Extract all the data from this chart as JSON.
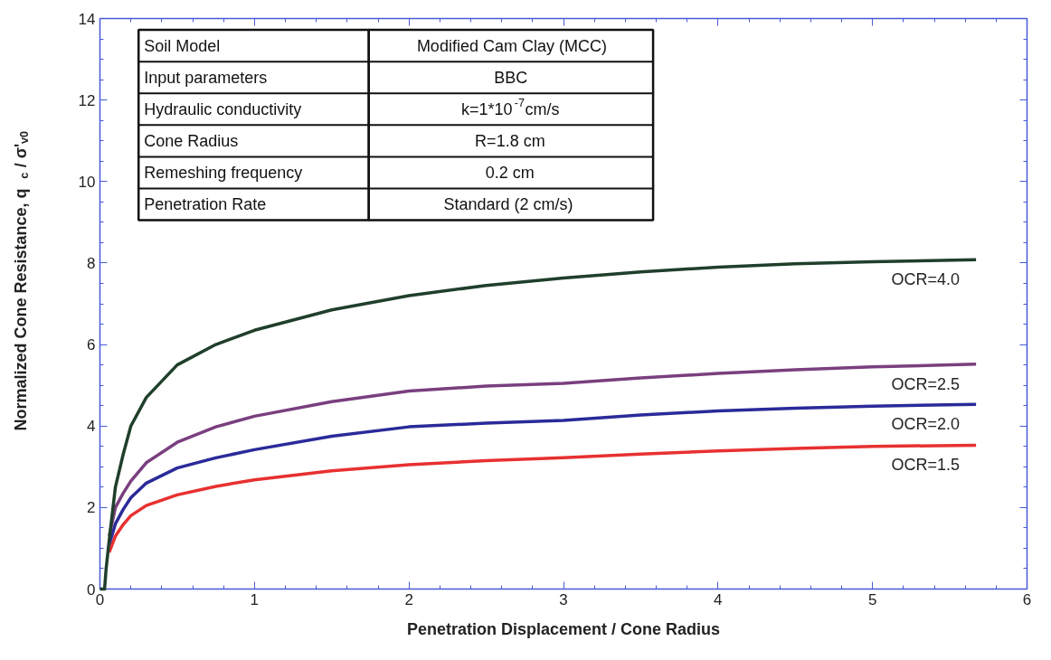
{
  "chart_data": {
    "type": "line",
    "xlabel": "Penetration Displacement / Cone Radius",
    "ylabel": "Normalized Cone Resistance, q$_{c}$ / σ'$_{v0}$",
    "x": [
      0,
      0.03,
      0.04,
      0.06,
      0.1,
      0.15,
      0.2,
      0.3,
      0.5,
      0.75,
      1,
      1.5,
      2,
      2.5,
      3,
      3.5,
      4,
      4.5,
      5,
      5.67
    ],
    "series": [
      {
        "name": "OCR=4.0",
        "color": "#1f3f2a",
        "values": [
          0,
          0,
          0.5,
          1.2,
          2.5,
          3.3,
          4.0,
          4.7,
          5.5,
          6.0,
          6.35,
          6.85,
          7.2,
          7.45,
          7.63,
          7.78,
          7.9,
          7.98,
          8.03,
          8.08
        ]
      },
      {
        "name": "OCR=2.5",
        "color": "#7a3f7f",
        "x": [
          0.06,
          0.1,
          0.15,
          0.2,
          0.3,
          0.5,
          0.75,
          1,
          1.5,
          2,
          2.5,
          3,
          3.5,
          4,
          4.5,
          5,
          5.67
        ],
        "values": [
          1.3,
          2.0,
          2.35,
          2.65,
          3.1,
          3.6,
          3.98,
          4.24,
          4.6,
          4.86,
          4.98,
          5.05,
          5.18,
          5.29,
          5.38,
          5.45,
          5.52
        ]
      },
      {
        "name": "OCR=2.0",
        "color": "#2a2a9a",
        "x": [
          0.06,
          0.1,
          0.15,
          0.2,
          0.3,
          0.5,
          0.75,
          1,
          1.5,
          2,
          2.5,
          3,
          3.5,
          4,
          4.5,
          5,
          5.67
        ],
        "values": [
          1.1,
          1.6,
          1.95,
          2.24,
          2.6,
          2.97,
          3.22,
          3.42,
          3.75,
          3.98,
          4.07,
          4.14,
          4.27,
          4.37,
          4.44,
          4.49,
          4.53
        ]
      },
      {
        "name": "OCR=1.5",
        "color": "#e83030",
        "x": [
          0.06,
          0.1,
          0.15,
          0.2,
          0.3,
          0.5,
          0.75,
          1,
          1.5,
          2,
          2.5,
          3,
          3.5,
          4,
          4.5,
          5,
          5.67
        ],
        "values": [
          0.9,
          1.3,
          1.58,
          1.8,
          2.05,
          2.31,
          2.52,
          2.68,
          2.9,
          3.05,
          3.15,
          3.22,
          3.31,
          3.39,
          3.45,
          3.5,
          3.53
        ]
      }
    ],
    "xlim": [
      0,
      6
    ],
    "ylim": [
      0,
      14
    ],
    "xticks": [
      0,
      1,
      2,
      3,
      4,
      5,
      6
    ],
    "yticks": [
      0,
      2,
      4,
      6,
      8,
      10,
      12,
      14
    ],
    "grid": false,
    "legend": false,
    "marker": "none",
    "line_style": "solid",
    "annotations": [
      "Soil Model",
      "Modified Cam Clay (MCC)",
      "Input parameters",
      "BBC",
      "Hydraulic conductivity",
      "k=1*10$^{-7}$cm/s",
      "Cone Radius",
      "R=1.8 cm",
      "Remeshing frequency",
      "0.2 cm",
      "Penetration Rate",
      "Standard (2 cm/s)"
    ]
  }
}
